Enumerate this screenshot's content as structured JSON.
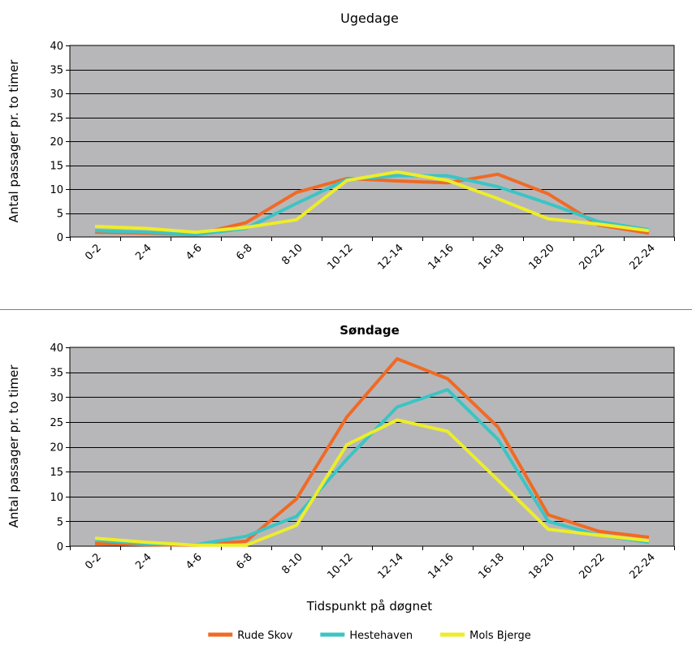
{
  "colors": {
    "plot_bg": "#B7B7B9",
    "grid": "#000000",
    "divider": "#808080"
  },
  "legend": {
    "placement": "bottom-center",
    "items": [
      {
        "label": "Rude Skov",
        "color": "#F06A25"
      },
      {
        "label": "Hestehaven",
        "color": "#3CC4C4"
      },
      {
        "label": "Mols Bjerge",
        "color": "#EDED2A"
      }
    ]
  },
  "chart_data": [
    {
      "type": "line",
      "title": "Ugedage",
      "ylabel": "Antal passager pr. to timer",
      "xlabel": "",
      "ylim": [
        0,
        40
      ],
      "yticks": [
        0,
        5,
        10,
        15,
        20,
        25,
        30,
        35,
        40
      ],
      "grid": true,
      "categories": [
        "0-2",
        "2-4",
        "4-6",
        "6-8",
        "8-10",
        "10-12",
        "12-14",
        "14-16",
        "16-18",
        "18-20",
        "20-22",
        "22-24"
      ],
      "series": [
        {
          "name": "Rude Skov",
          "color": "#F06A25",
          "values": [
            1.0,
            0.8,
            0.5,
            3.0,
            9.3,
            12.2,
            11.7,
            11.3,
            13.1,
            9.0,
            2.5,
            0.8
          ]
        },
        {
          "name": "Hestehaven",
          "color": "#3CC4C4",
          "values": [
            1.3,
            1.0,
            0.5,
            1.8,
            7.0,
            12.0,
            12.8,
            12.8,
            10.5,
            7.0,
            3.2,
            1.5
          ]
        },
        {
          "name": "Mols Bjerge",
          "color": "#EDED2A",
          "values": [
            2.2,
            1.8,
            1.0,
            2.0,
            3.6,
            11.8,
            13.6,
            11.8,
            8.0,
            3.8,
            2.7,
            1.3
          ]
        }
      ]
    },
    {
      "type": "line",
      "title": "Søndage",
      "ylabel": "Antal passager pr. to timer",
      "xlabel": "Tidspunkt på døgnet",
      "ylim": [
        0,
        40
      ],
      "yticks": [
        0,
        5,
        10,
        15,
        20,
        25,
        30,
        35,
        40
      ],
      "grid": true,
      "categories": [
        "0-2",
        "2-4",
        "4-6",
        "6-8",
        "8-10",
        "10-12",
        "12-14",
        "14-16",
        "16-18",
        "18-20",
        "20-22",
        "22-24"
      ],
      "series": [
        {
          "name": "Rude Skov",
          "color": "#F06A25",
          "values": [
            0.5,
            0.3,
            0.2,
            1.0,
            9.5,
            26.0,
            37.7,
            33.7,
            24.0,
            6.3,
            3.0,
            1.8
          ]
        },
        {
          "name": "Hestehaven",
          "color": "#3CC4C4",
          "values": [
            1.2,
            0.5,
            0.3,
            2.0,
            6.0,
            17.5,
            28.0,
            31.5,
            21.5,
            5.0,
            2.2,
            0.8
          ]
        },
        {
          "name": "Mols Bjerge",
          "color": "#EDED2A",
          "values": [
            1.6,
            0.8,
            0.2,
            0.2,
            4.2,
            20.4,
            25.4,
            23.1,
            13.3,
            3.4,
            2.2,
            1.1
          ]
        }
      ]
    }
  ]
}
